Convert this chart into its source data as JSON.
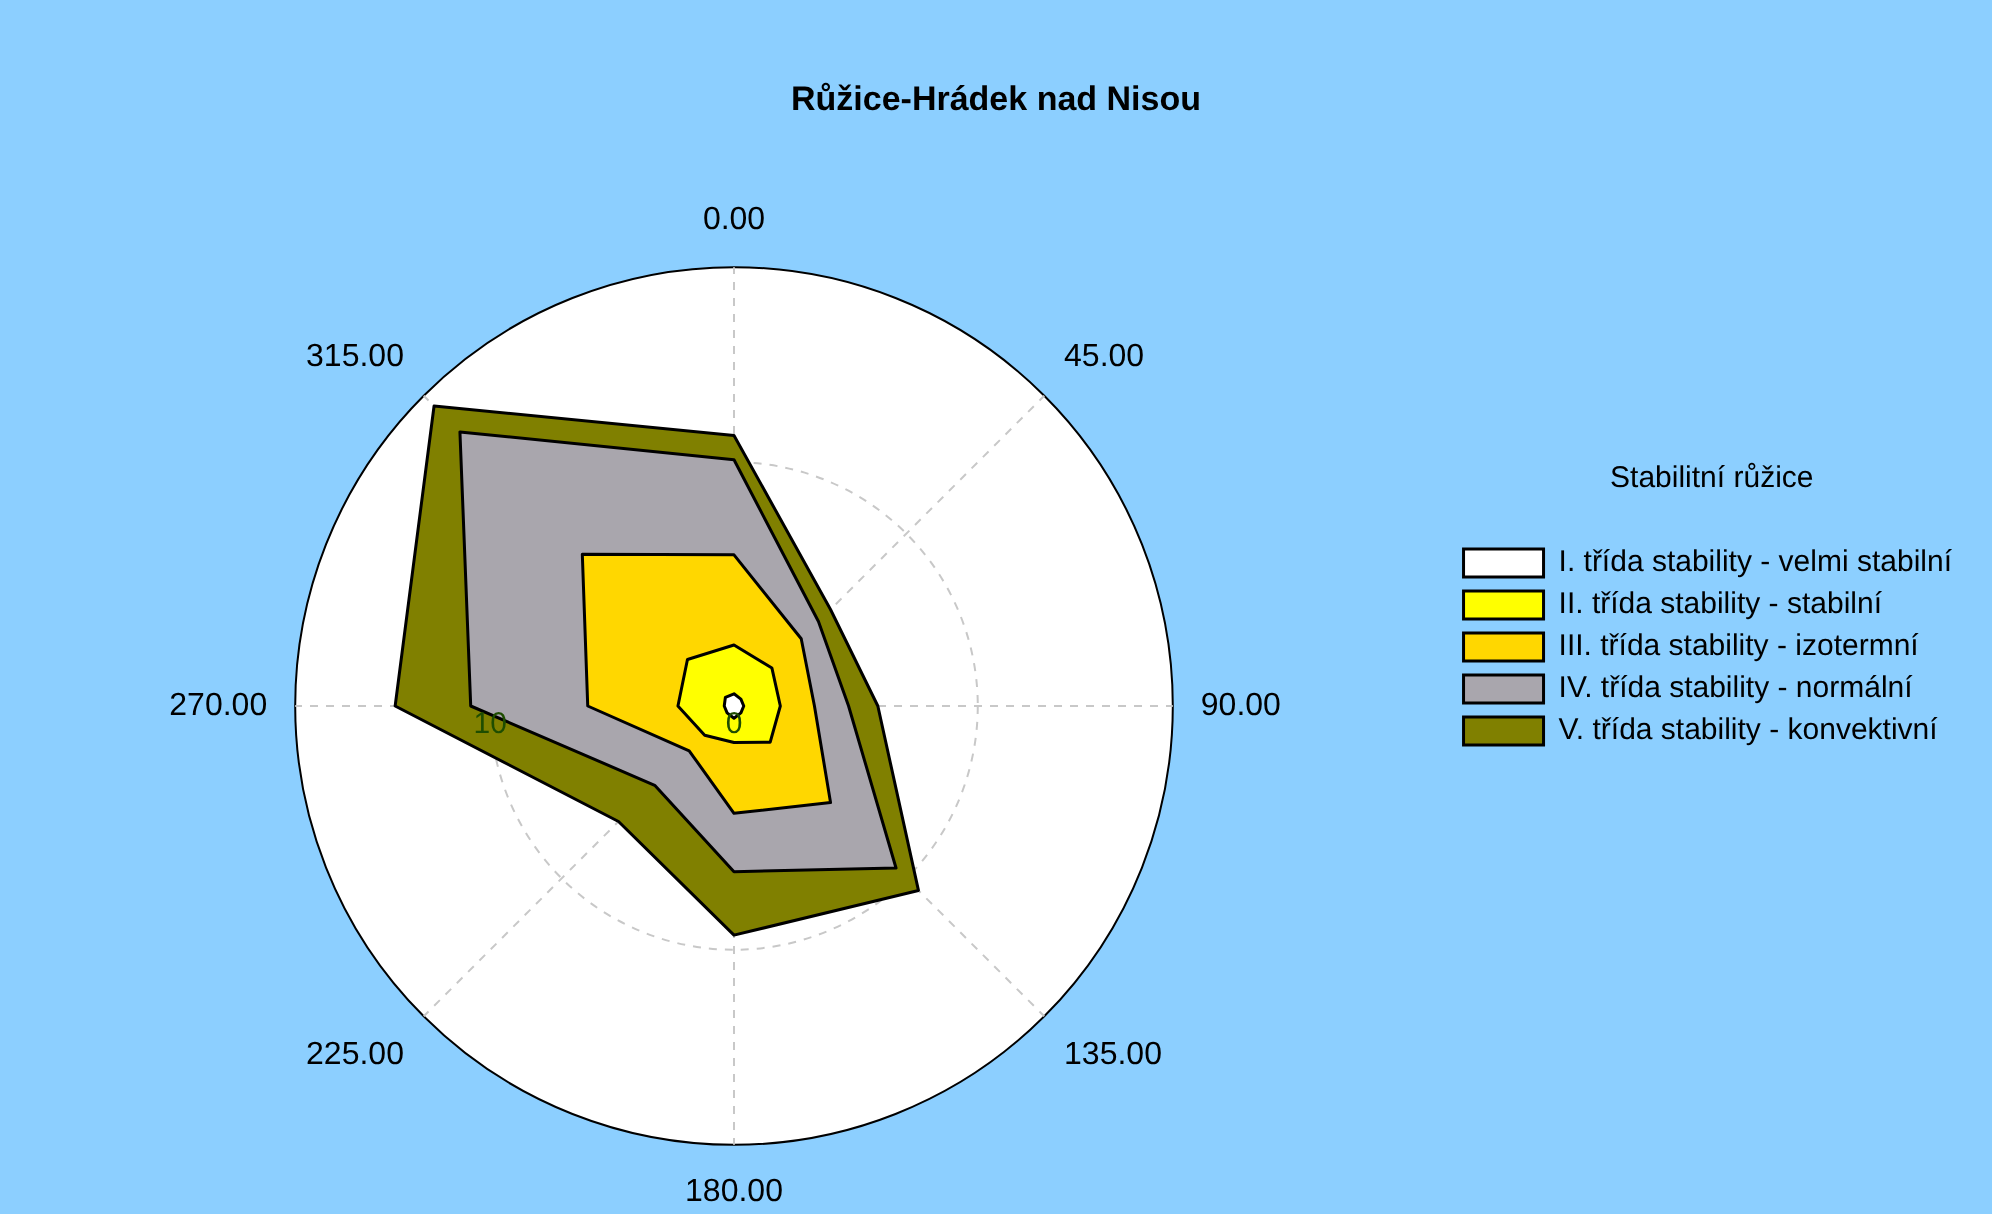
{
  "chart_data": {
    "type": "radar",
    "title": "Růžice-Hrádek nad Nisou",
    "legend_title": "Stabilitní růžice",
    "legend": "right",
    "grid": true,
    "categories": [
      "0.00",
      "45.00",
      "90.00",
      "135.00",
      "180.00",
      "225.00",
      "270.00",
      "315.00"
    ],
    "ylim": [
      0,
      18
    ],
    "yticks": [
      0,
      10
    ],
    "series": [
      {
        "name": "I. třída stability - velmi stabilní",
        "color": "#ffffff",
        "values": [
          0.5,
          0.4,
          0.4,
          0.4,
          0.5,
          0.4,
          0.4,
          0.5
        ]
      },
      {
        "name": "II. třída stability - stabilní",
        "color": "#ffff00",
        "values": [
          2.5,
          2.2,
          1.9,
          2.1,
          1.5,
          1.7,
          2.3,
          2.7
        ]
      },
      {
        "name": "III. třída stability - izotermní",
        "color": "#ffd700",
        "values": [
          6.2,
          3.9,
          3.3,
          5.6,
          4.4,
          2.6,
          6.0,
          8.8
        ]
      },
      {
        "name": "IV. třída stability - normální",
        "color": "#a9a6ad",
        "values": [
          10.1,
          4.9,
          4.7,
          9.4,
          6.8,
          4.6,
          10.8,
          15.9
        ]
      },
      {
        "name": "V. třída stability - konvektivní",
        "color": "#808000",
        "values": [
          11.1,
          5.6,
          5.9,
          10.7,
          9.4,
          6.7,
          13.9,
          17.4
        ]
      }
    ]
  }
}
